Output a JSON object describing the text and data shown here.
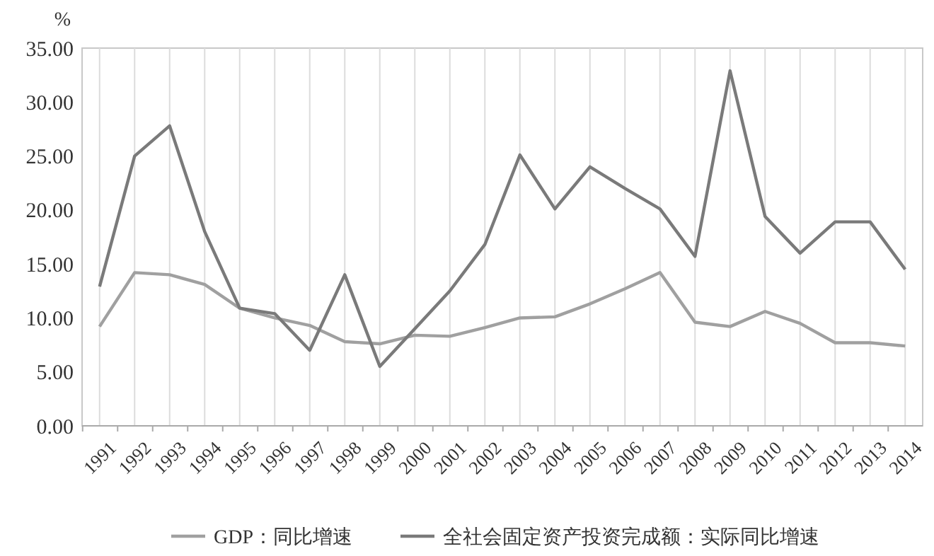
{
  "chart_data": {
    "type": "line",
    "ylabel": "%",
    "categories": [
      "1991",
      "1992",
      "1993",
      "1994",
      "1995",
      "1996",
      "1997",
      "1998",
      "1999",
      "2000",
      "2001",
      "2002",
      "2003",
      "2004",
      "2005",
      "2006",
      "2007",
      "2008",
      "2009",
      "2010",
      "2011",
      "2012",
      "2013",
      "2014"
    ],
    "series": [
      {
        "name": "GDP：同比增速",
        "color": "#a0a0a0",
        "values": [
          9.2,
          14.2,
          14.0,
          13.1,
          10.9,
          10.0,
          9.3,
          7.8,
          7.6,
          8.4,
          8.3,
          9.1,
          10.0,
          10.1,
          11.3,
          12.7,
          14.2,
          9.6,
          9.2,
          10.6,
          9.5,
          7.7,
          7.7,
          7.4
        ]
      },
      {
        "name": "全社会固定资产投资完成额：实际同比增速",
        "color": "#7a7a7a",
        "values": [
          12.9,
          25.0,
          27.8,
          18.0,
          10.9,
          10.4,
          7.0,
          14.0,
          5.5,
          9.0,
          12.5,
          16.8,
          25.1,
          20.1,
          24.0,
          22.0,
          20.1,
          15.7,
          32.9,
          19.4,
          16.0,
          18.9,
          18.9,
          14.5
        ]
      }
    ],
    "ylim": [
      0,
      35
    ],
    "yticks": [
      {
        "value": 0,
        "label": "0.00"
      },
      {
        "value": 5,
        "label": "5.00"
      },
      {
        "value": 10,
        "label": "10.00"
      },
      {
        "value": 15,
        "label": "15.00"
      },
      {
        "value": 20,
        "label": "20.00"
      },
      {
        "value": 25,
        "label": "25.00"
      },
      {
        "value": 30,
        "label": "30.00"
      },
      {
        "value": 35,
        "label": "35.00"
      }
    ],
    "grid": "x",
    "legend": "bottom",
    "marker": "none",
    "line_style": "solid"
  }
}
